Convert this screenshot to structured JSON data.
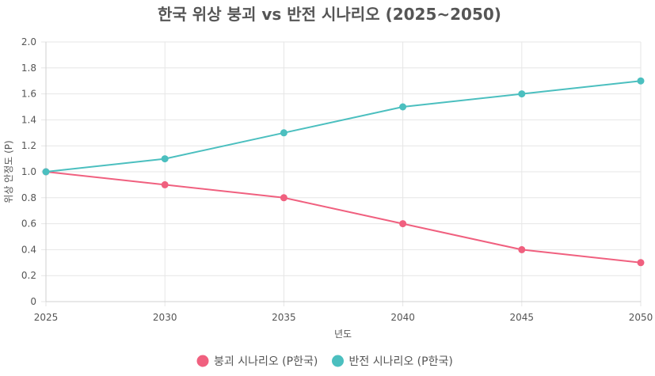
{
  "chart_data": {
    "type": "line",
    "title": "한국 위상 붕괴 vs 반전 시나리오 (2025~2050)",
    "xlabel": "년도",
    "ylabel": "위상 안정도 (P)",
    "x": [
      "2025",
      "2030",
      "2035",
      "2040",
      "2045",
      "2050"
    ],
    "ylim": [
      0,
      2.0
    ],
    "yticks": [
      "0",
      "0.2",
      "0.4",
      "0.6",
      "0.8",
      "1.0",
      "1.2",
      "1.4",
      "1.6",
      "1.8",
      "2.0"
    ],
    "grid": true,
    "legend_position": "bottom",
    "series": [
      {
        "name": "붕괴 시나리오 (P한국)",
        "color": "#f0607f",
        "values": [
          1.0,
          0.9,
          0.8,
          0.6,
          0.4,
          0.3
        ]
      },
      {
        "name": "반전 시나리오 (P한국)",
        "color": "#4bbfbf",
        "values": [
          1.0,
          1.1,
          1.3,
          1.5,
          1.6,
          1.7
        ]
      }
    ]
  }
}
